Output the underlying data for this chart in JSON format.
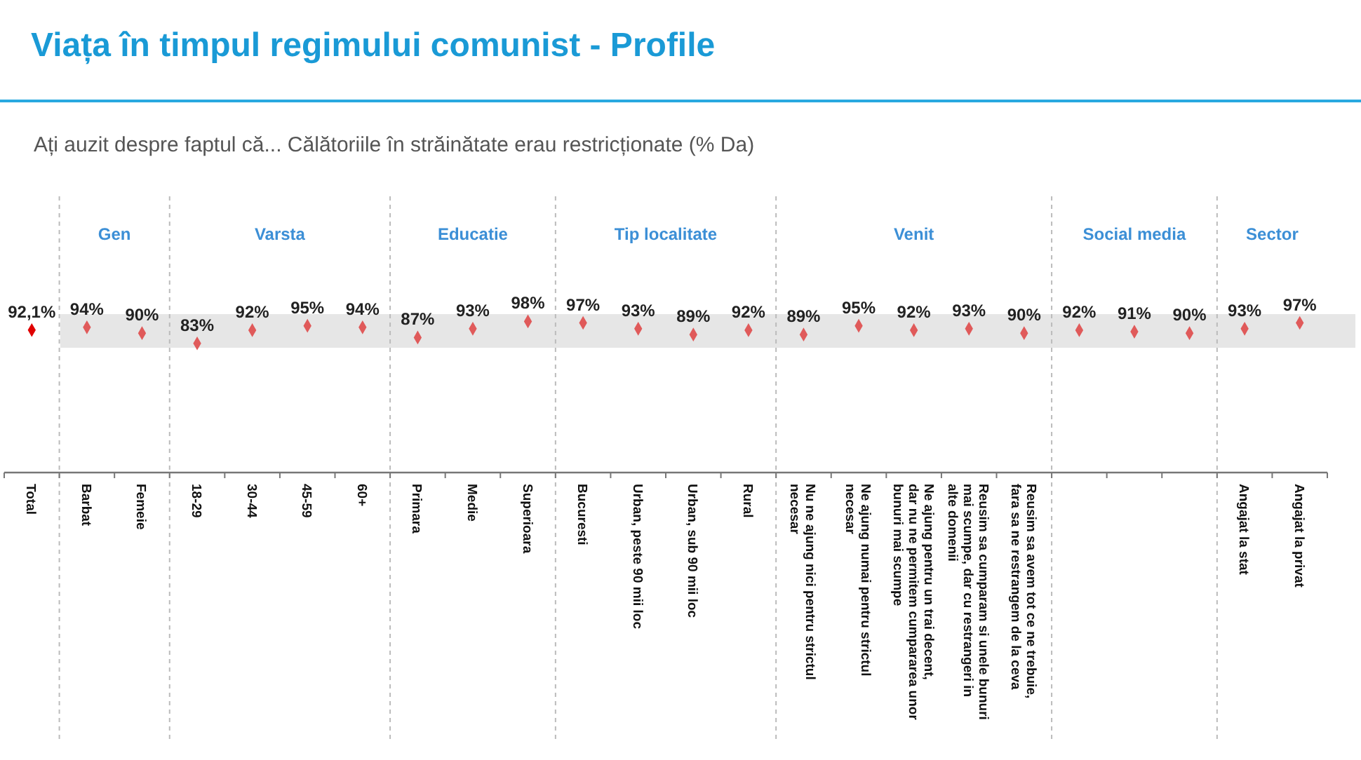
{
  "chart_data": {
    "type": "scatter",
    "title": "Viața în timpul regimului comunist - Profile",
    "subtitle": "Ați auzit despre faptul că... Călătoriile în străinătate erau restricționate (% Da)",
    "categories": [
      "Total",
      "Barbat",
      "Femeie",
      "18-29",
      "30-44",
      "45-59",
      "60+",
      "Primara",
      "Medie",
      "Superioara",
      "Bucuresti",
      "Urban, peste 90 mii loc",
      "Urban, sub 90 mii loc",
      "Rural",
      "Nu ne ajung nici pentru strictul necesar",
      "Ne ajung numai pentru strictul necesar",
      "Ne ajung pentru un trai decent, dar nu ne permitem cumpararea unor bunuri mai scumpe",
      "Reusim sa cumparam si unele bunuri mai scumpe, dar cu restrangeri in alte domenii",
      "Reusim sa avem tot ce ne trebuie, fara sa ne restrangem de la ceva",
      null,
      null,
      null,
      "Angajat la stat",
      "Angajat la privat"
    ],
    "values": [
      92.1,
      94,
      90,
      83,
      92,
      95,
      94,
      87,
      93,
      98,
      97,
      93,
      89,
      92,
      89,
      95,
      92,
      93,
      90,
      92,
      91,
      90,
      93,
      97
    ],
    "value_labels": [
      "92,1%",
      "94%",
      "90%",
      "83%",
      "92%",
      "95%",
      "94%",
      "87%",
      "93%",
      "98%",
      "97%",
      "93%",
      "89%",
      "92%",
      "89%",
      "95%",
      "92%",
      "93%",
      "90%",
      "92%",
      "91%",
      "90%",
      "93%",
      "97%"
    ],
    "colors": [
      "#e00000",
      "#e05a5a",
      "#e05a5a",
      "#e05a5a",
      "#e05a5a",
      "#e05a5a",
      "#e05a5a",
      "#e05a5a",
      "#e05a5a",
      "#e05a5a",
      "#e05a5a",
      "#e05a5a",
      "#e05a5a",
      "#e05a5a",
      "#e05a5a",
      "#e05a5a",
      "#e05a5a",
      "#e05a5a",
      "#e05a5a",
      "#e05a5a",
      "#e05a5a",
      "#e05a5a",
      "#e05a5a",
      "#e05a5a"
    ],
    "marker": "diamond",
    "ylim": [
      80,
      103
    ],
    "bands": [
      {
        "axis": "y",
        "from": 80,
        "to": 103,
        "color": "#e6e6e6"
      }
    ],
    "annotations": [
      "Gen",
      "Varsta",
      "Educatie",
      "Tip localitate",
      "Venit",
      "Social media",
      "Sector"
    ]
  }
}
